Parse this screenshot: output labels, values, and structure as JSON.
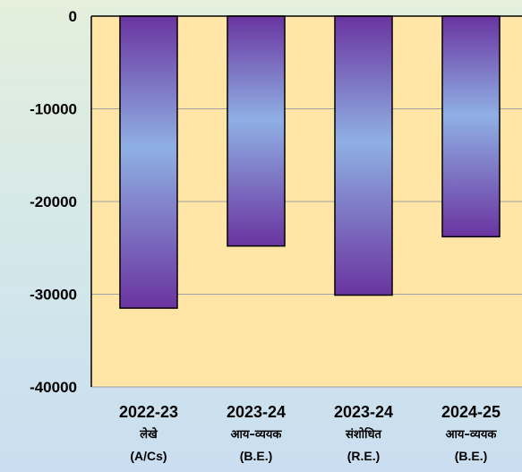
{
  "chart_data": {
    "type": "bar",
    "categories": [
      {
        "year": "2022-23",
        "label": "लेखे",
        "code": "(A/Cs)"
      },
      {
        "year": "2023-24",
        "label": "आय–व्ययक",
        "code": "(B.E.)"
      },
      {
        "year": "2023-24",
        "label": "संशोधित",
        "code": "(R.E.)"
      },
      {
        "year": "2024-25",
        "label": "आय–व्ययक",
        "code": "(B.E.)"
      }
    ],
    "values": [
      -31500,
      -24800,
      -30100,
      -23800
    ],
    "y_ticks": [
      0,
      -10000,
      -20000,
      -30000,
      -40000
    ],
    "ylim": [
      -40000,
      0
    ],
    "grid": true,
    "colors": {
      "plot_background": "#ffe6a6",
      "bar_dark": "#6a34a0",
      "bar_light": "#8fb0e4",
      "gridline": "#a0a0a0"
    }
  }
}
